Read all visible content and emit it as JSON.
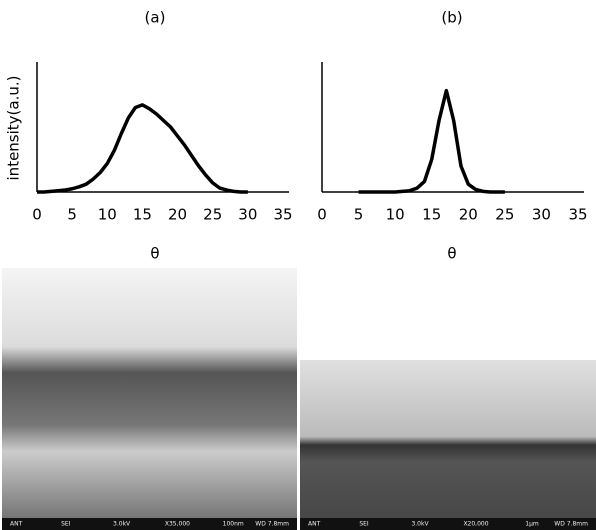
{
  "chart_data": [
    {
      "type": "line",
      "title": "(a)",
      "x_label": "θ",
      "y_label": "intensity(a.u.)",
      "x": [
        0,
        1,
        2,
        3,
        4,
        5,
        6,
        7,
        8,
        9,
        10,
        11,
        12,
        13,
        14,
        15,
        16,
        17,
        18,
        19,
        20,
        21,
        22,
        23,
        24,
        25,
        26,
        27,
        28,
        29,
        30
      ],
      "series": [
        {
          "color": "#000000",
          "values": [
            0,
            0,
            0.005,
            0.01,
            0.015,
            0.025,
            0.04,
            0.06,
            0.1,
            0.15,
            0.22,
            0.32,
            0.45,
            0.57,
            0.65,
            0.67,
            0.64,
            0.6,
            0.55,
            0.5,
            0.43,
            0.36,
            0.28,
            0.2,
            0.13,
            0.07,
            0.03,
            0.015,
            0.005,
            0,
            0
          ]
        }
      ],
      "xlim": [
        0,
        35
      ],
      "ylim": [
        0,
        1
      ],
      "xticks": [
        0,
        5,
        10,
        15,
        20,
        25,
        30,
        35
      ]
    },
    {
      "type": "line",
      "title": "(b)",
      "x_label": "θ",
      "x": [
        5,
        6,
        7,
        8,
        9,
        10,
        11,
        12,
        13,
        14,
        15,
        16,
        17,
        18,
        19,
        20,
        21,
        22,
        23,
        24,
        25
      ],
      "series": [
        {
          "color": "#000000",
          "values": [
            0,
            0,
            0,
            0,
            0,
            0,
            0.005,
            0.01,
            0.03,
            0.08,
            0.25,
            0.55,
            0.78,
            0.55,
            0.2,
            0.06,
            0.02,
            0.005,
            0,
            0,
            0
          ]
        }
      ],
      "xlim": [
        0,
        35
      ],
      "ylim": [
        0,
        1
      ],
      "xticks": [
        0,
        5,
        10,
        15,
        20,
        25,
        30,
        35
      ]
    }
  ],
  "images": [
    {
      "footer": [
        "ANT",
        "SEI",
        "3.0kV",
        "X35,000",
        "100nm",
        "WD 7.8mm"
      ]
    },
    {
      "footer": [
        "ANT",
        "SEI",
        "3.0kV",
        "X20,000",
        "1μm",
        "WD 7.8mm"
      ]
    }
  ]
}
